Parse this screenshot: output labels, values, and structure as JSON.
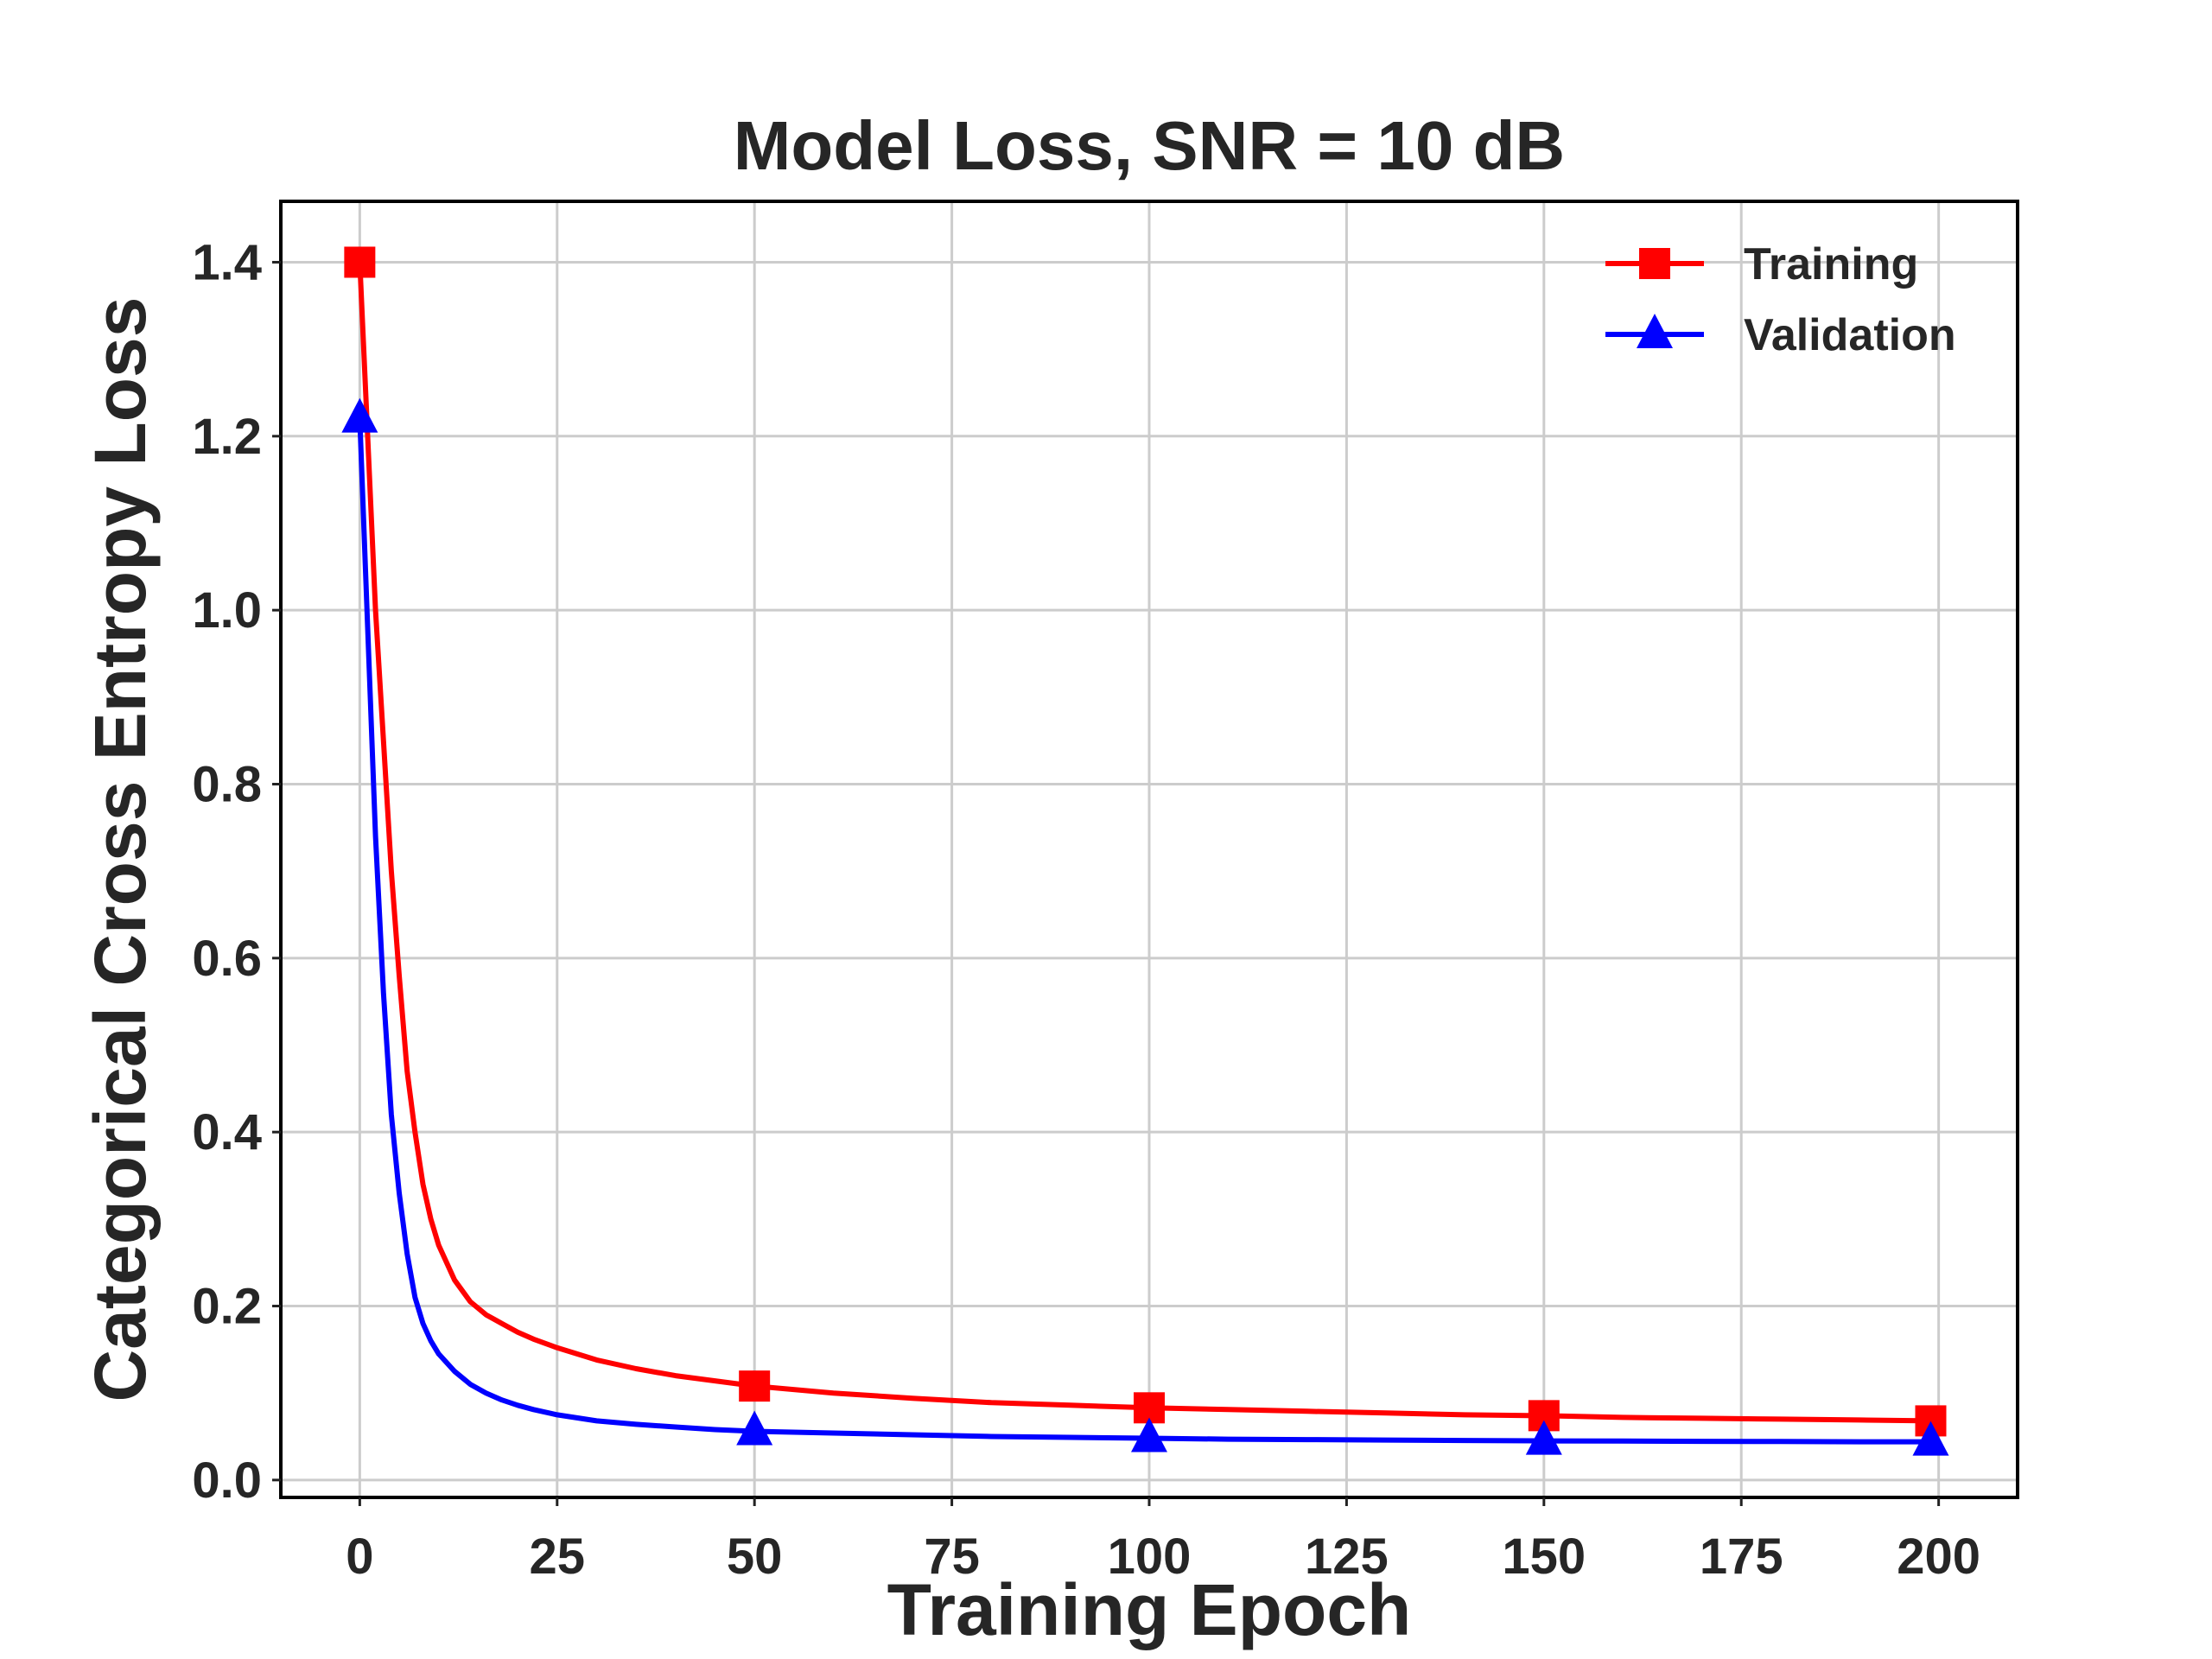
{
  "chart_data": {
    "type": "line",
    "title": "Model Loss, SNR = 10 dB",
    "xlabel": "Training Epoch",
    "ylabel": "Categorical Cross Entropy Loss",
    "xlim": [
      -10,
      210
    ],
    "ylim": [
      -0.02,
      1.47
    ],
    "xticks": [
      0,
      25,
      50,
      75,
      100,
      125,
      150,
      175,
      200
    ],
    "xtick_labels": [
      "0",
      "25",
      "50",
      "75",
      "100",
      "125",
      "150",
      "175",
      "200"
    ],
    "yticks": [
      0.0,
      0.2,
      0.4,
      0.6,
      0.8,
      1.0,
      1.2,
      1.4
    ],
    "ytick_labels": [
      "0.0",
      "0.2",
      "0.4",
      "0.6",
      "0.8",
      "1.0",
      "1.2",
      "1.4"
    ],
    "grid": true,
    "legend_position": "top-right",
    "series": [
      {
        "name": "Training",
        "color": "#ff0000",
        "marker": "square",
        "marker_epochs": [
          0,
          50,
          100,
          150,
          199
        ],
        "x": [
          0,
          1,
          2,
          3,
          4,
          5,
          6,
          7,
          8,
          9,
          10,
          12,
          14,
          16,
          18,
          20,
          22,
          25,
          30,
          35,
          40,
          45,
          50,
          60,
          70,
          80,
          90,
          100,
          110,
          120,
          130,
          140,
          150,
          160,
          170,
          180,
          190,
          199
        ],
        "values": [
          1.4,
          1.2,
          1.0,
          0.85,
          0.7,
          0.58,
          0.47,
          0.4,
          0.34,
          0.3,
          0.27,
          0.23,
          0.205,
          0.19,
          0.18,
          0.17,
          0.162,
          0.152,
          0.138,
          0.128,
          0.12,
          0.114,
          0.108,
          0.1,
          0.094,
          0.089,
          0.086,
          0.083,
          0.081,
          0.079,
          0.077,
          0.075,
          0.074,
          0.072,
          0.071,
          0.07,
          0.069,
          0.068
        ]
      },
      {
        "name": "Validation",
        "color": "#0000ff",
        "marker": "triangle",
        "marker_epochs": [
          0,
          50,
          100,
          150,
          199
        ],
        "x": [
          0,
          1,
          2,
          3,
          4,
          5,
          6,
          7,
          8,
          9,
          10,
          12,
          14,
          16,
          18,
          20,
          22,
          25,
          30,
          35,
          40,
          45,
          50,
          60,
          70,
          80,
          90,
          100,
          110,
          120,
          130,
          140,
          150,
          160,
          170,
          180,
          190,
          199
        ],
        "values": [
          1.22,
          0.98,
          0.74,
          0.56,
          0.42,
          0.33,
          0.26,
          0.21,
          0.18,
          0.16,
          0.145,
          0.125,
          0.11,
          0.1,
          0.092,
          0.086,
          0.081,
          0.075,
          0.068,
          0.064,
          0.061,
          0.058,
          0.056,
          0.054,
          0.052,
          0.05,
          0.049,
          0.048,
          0.047,
          0.0465,
          0.046,
          0.0455,
          0.045,
          0.0448,
          0.0445,
          0.0443,
          0.044,
          0.044
        ]
      }
    ]
  }
}
